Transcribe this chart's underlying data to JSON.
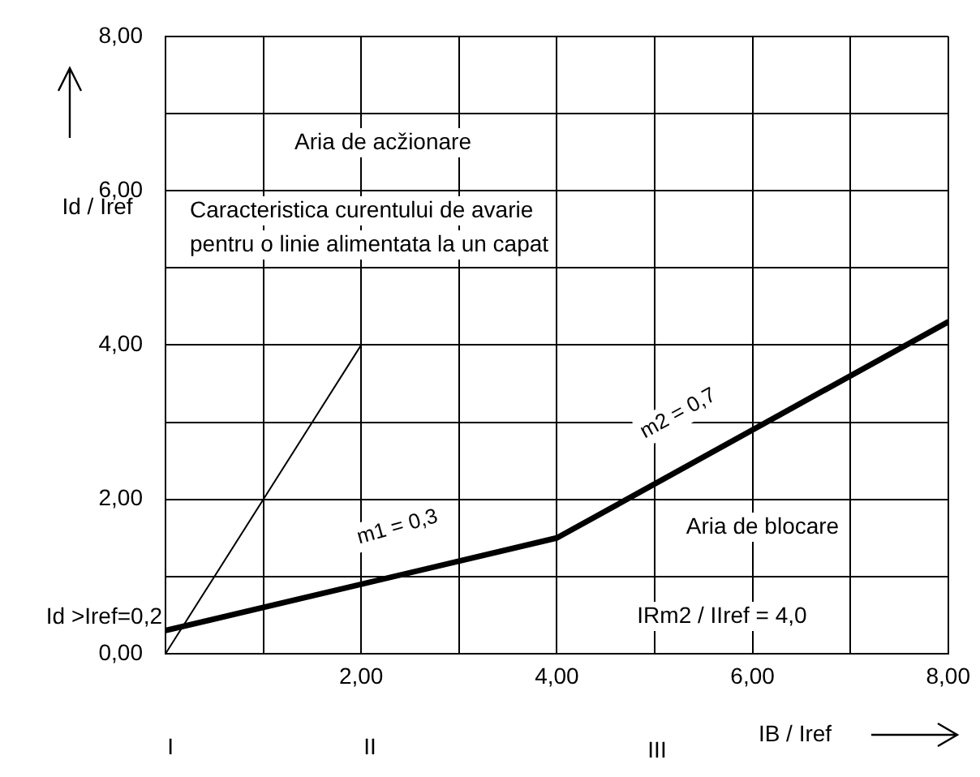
{
  "chart_data": {
    "type": "line",
    "xlabel": "IB / Iref",
    "ylabel": "Id / Iref",
    "xlim": [
      0,
      8
    ],
    "ylim": [
      0,
      8
    ],
    "xticks": [
      {
        "value": 1,
        "label": null
      },
      {
        "value": 2,
        "label": "2,00"
      },
      {
        "value": 3,
        "label": null
      },
      {
        "value": 4,
        "label": "4,00"
      },
      {
        "value": 5,
        "label": null
      },
      {
        "value": 6,
        "label": "6,00"
      },
      {
        "value": 7,
        "label": null
      },
      {
        "value": 8,
        "label": "8,00"
      }
    ],
    "yticks": [
      {
        "value": 0,
        "label": "0,00"
      },
      {
        "value": 1,
        "label": null
      },
      {
        "value": 2,
        "label": "2,00"
      },
      {
        "value": 3,
        "label": null
      },
      {
        "value": 4,
        "label": "4,00"
      },
      {
        "value": 5,
        "label": null
      },
      {
        "value": 6,
        "label": "6,00"
      },
      {
        "value": 7,
        "label": null
      },
      {
        "value": 8,
        "label": "8,00"
      }
    ],
    "series": [
      {
        "color": "#000000",
        "x": [
          0,
          4,
          8
        ],
        "values": [
          0.3,
          1.5,
          4.3
        ]
      },
      {
        "color": "#000000",
        "x": [
          0,
          2
        ],
        "values": [
          0,
          4
        ]
      }
    ],
    "annotations": [
      "Aria de acžionare",
      "Caracteristica curentului de avarie\npentru o linie alimentata la un capat",
      "m1 = 0,3",
      "m2 = 0,7",
      "Aria de blocare",
      "IRm2 / IIref = 4,0",
      {
        "text": "Id >Iref=0,2",
        "x": 0,
        "y": 0.3
      },
      "I",
      "II",
      "III"
    ],
    "grid": true,
    "legend": false,
    "marker": "none",
    "line_style": "solid"
  }
}
